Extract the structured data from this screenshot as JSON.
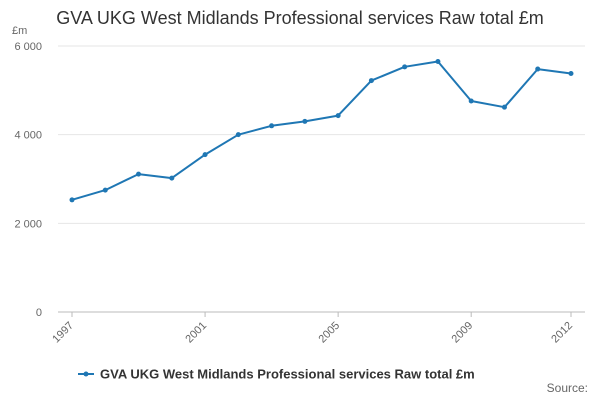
{
  "chart_data": {
    "type": "line",
    "title": "GVA UKG West Midlands Professional services Raw total £m",
    "y_unit": "£m",
    "ylim": [
      0,
      6000
    ],
    "y_ticks": [
      0,
      2000,
      4000,
      6000
    ],
    "y_tick_labels": [
      "0",
      "2 000",
      "4 000",
      "6 000"
    ],
    "x_ticks": [
      1997,
      2001,
      2005,
      2009,
      2012
    ],
    "x_tick_labels": [
      "1997",
      "2001",
      "2005",
      "2009",
      "2012"
    ],
    "x_range": [
      1997,
      2012
    ],
    "grid": true,
    "legend_position": "bottom",
    "series": [
      {
        "name": "GVA UKG West Midlands Professional services Raw total £m",
        "color": "#1f77b4",
        "x": [
          1997,
          1998,
          1999,
          2000,
          2001,
          2002,
          2003,
          2004,
          2005,
          2006,
          2007,
          2008,
          2009,
          2010,
          2011,
          2012
        ],
        "values": [
          2530,
          2750,
          3110,
          3020,
          3550,
          4000,
          4200,
          4300,
          4430,
          5220,
          5530,
          5650,
          4760,
          4620,
          5480,
          5380
        ]
      }
    ]
  },
  "footer": {
    "source_label": "Source:"
  }
}
